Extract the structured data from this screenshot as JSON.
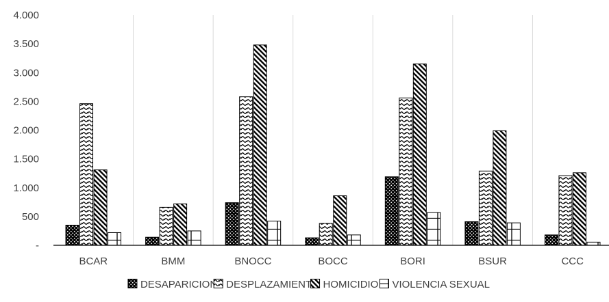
{
  "chart_data": {
    "type": "bar",
    "categories": [
      "BCAR",
      "BMM",
      "BNOCC",
      "BOCC",
      "BORI",
      "BSUR",
      "CCC"
    ],
    "series": [
      {
        "name": "DESAPARICION",
        "pattern": "dots",
        "values": [
          350,
          140,
          740,
          130,
          1190,
          410,
          180
        ]
      },
      {
        "name": "DESPLAZAMIENTO",
        "pattern": "waves",
        "values": [
          2460,
          660,
          2580,
          380,
          2560,
          1290,
          1210
        ]
      },
      {
        "name": "HOMICIDIO",
        "pattern": "diagonal",
        "values": [
          1310,
          720,
          3480,
          860,
          3150,
          1990,
          1260
        ]
      },
      {
        "name": "VIOLENCIA SEXUAL",
        "pattern": "grid",
        "values": [
          220,
          250,
          420,
          180,
          570,
          390,
          55
        ]
      }
    ],
    "y_ticks": [
      "-",
      "500",
      "1.000",
      "1.500",
      "2.000",
      "2.500",
      "3.000",
      "3.500",
      "4.000"
    ],
    "ylim": [
      0,
      4000
    ],
    "grid": "vertical category separators",
    "legend_position": "bottom",
    "title": "",
    "xlabel": "",
    "ylabel": ""
  }
}
